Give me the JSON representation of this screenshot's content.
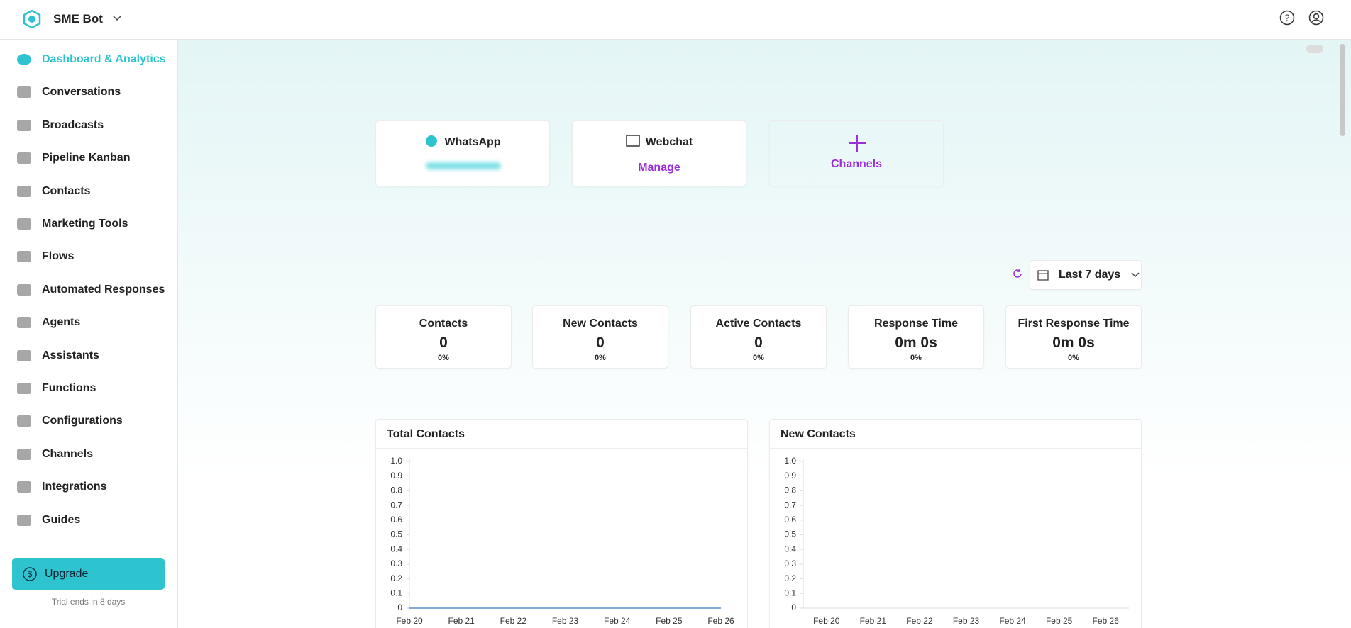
{
  "header": {
    "workspace": "SME Bot"
  },
  "sidebar": {
    "items": [
      "Dashboard & Analytics",
      "Conversations",
      "Broadcasts",
      "Pipeline Kanban",
      "Contacts",
      "Marketing Tools",
      "Flows",
      "Automated Responses",
      "Agents",
      "Assistants",
      "Functions",
      "Configurations",
      "Channels",
      "Integrations",
      "Guides"
    ],
    "upgrade": "Upgrade",
    "trial": "Trial ends in 8 days"
  },
  "channels": [
    {
      "title": "WhatsApp"
    },
    {
      "title": "Webchat",
      "action": "Manage"
    },
    {
      "title": "Channels"
    }
  ],
  "date_range": "Last 7 days",
  "metrics": [
    {
      "label": "Contacts",
      "value": "0",
      "change": "0%"
    },
    {
      "label": "New Contacts",
      "value": "0",
      "change": "0%"
    },
    {
      "label": "Active Contacts",
      "value": "0",
      "change": "0%"
    },
    {
      "label": "Response Time",
      "value": "0m 0s",
      "change": "0%"
    },
    {
      "label": "First Response Time",
      "value": "0m 0s",
      "change": "0%"
    }
  ],
  "charts": [
    {
      "type": "line",
      "title": "Total Contacts",
      "categories": [
        "Feb 20",
        "Feb 21",
        "Feb 22",
        "Feb 23",
        "Feb 24",
        "Feb 25",
        "Feb 26"
      ],
      "values": [
        0,
        0,
        0,
        0,
        0,
        0,
        0
      ],
      "color": "#5b8fc9",
      "ylim": [
        0,
        1
      ],
      "yticks": [
        0,
        0.1,
        0.2,
        0.3,
        0.4,
        0.5,
        0.6,
        0.7,
        0.8,
        0.9,
        {
          "value": 1,
          "label": "1.0"
        }
      ]
    },
    {
      "type": "bar",
      "title": "New Contacts",
      "categories": [
        "Feb 20",
        "Feb 21",
        "Feb 22",
        "Feb 23",
        "Feb 24",
        "Feb 25",
        "Feb 26"
      ],
      "values": [
        0,
        0,
        0,
        0,
        0,
        0,
        0
      ],
      "color": "#5b8fc9",
      "ylim": [
        0,
        1
      ],
      "yticks": [
        0,
        0.1,
        0.2,
        0.3,
        0.4,
        0.5,
        0.6,
        0.7,
        0.8,
        0.9,
        {
          "value": 1,
          "label": "1.0"
        }
      ]
    }
  ]
}
